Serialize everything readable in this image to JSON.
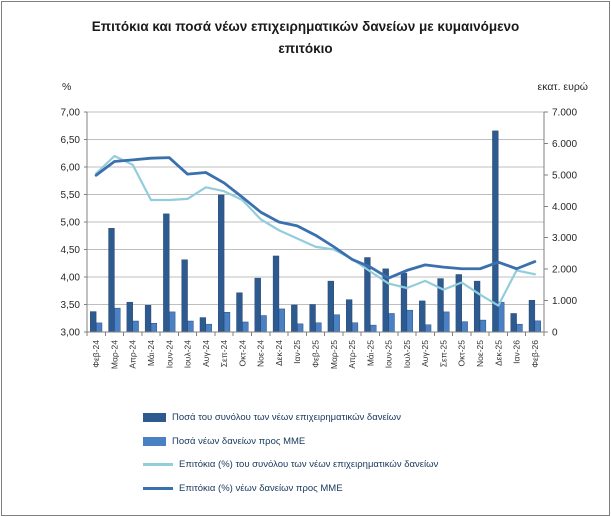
{
  "title": "Επιτόκια και ποσά νέων επιχειρηματικών δανείων με κυμαινόμενο επιτόκιο",
  "axes": {
    "left_unit": "%",
    "right_unit": "εκατ. ευρώ",
    "left_tick_labels": [
      "7,00",
      "6,50",
      "6,00",
      "5,50",
      "5,00",
      "4,50",
      "4,00",
      "3,50",
      "3,00"
    ],
    "right_tick_labels": [
      "7.000",
      "6.000",
      "5.000",
      "4.000",
      "3.000",
      "2.000",
      "1.000",
      "0"
    ]
  },
  "chart_data": {
    "type": "combo",
    "title": "Επιτόκια και ποσά νέων επιχειρηματικών δανείων με κυμαινόμενο επιτόκιο",
    "grid": true,
    "legend_position": "bottom",
    "categories": [
      "Φεβ-24",
      "Μαρ-24",
      "Απρ-24",
      "Μάι-24",
      "Ιουν-24",
      "Ιουλ-24",
      "Αυγ-24",
      "Σεπ-24",
      "Οκτ-24",
      "Νοε-24",
      "Δεκ-24",
      "Ιαν-25",
      "Φεβ-25",
      "Μαρ-25",
      "Απρ-25",
      "Μάι-25",
      "Ιουν-25",
      "Ιουλ-25",
      "Αυγ-25",
      "Σεπ-25",
      "Οκτ-25",
      "Νοε-25",
      "Δεκ-25",
      "Ιαν-26",
      "Φεβ-26"
    ],
    "left_axis": {
      "min": 3.0,
      "max": 7.0,
      "step": 0.5,
      "unit": "%"
    },
    "right_axis": {
      "min": 0,
      "max": 7000,
      "step": 1000,
      "unit": "εκατ. ευρώ"
    },
    "series": [
      {
        "name": "Ποσά του συνόλου των νέων επιχειρηματικών δανείων",
        "type": "bar",
        "axis": "right",
        "color": "#2E5B8F",
        "values": [
          650,
          3300,
          950,
          850,
          3760,
          2300,
          460,
          4360,
          1250,
          1715,
          2420,
          860,
          875,
          1620,
          1030,
          2370,
          2010,
          1875,
          990,
          1700,
          1830,
          1620,
          6400,
          590,
          1010
        ]
      },
      {
        "name": "Ποσά νέων δανείων προς ΜΜΕ",
        "type": "bar",
        "axis": "right",
        "color": "#4A80C4",
        "values": [
          290,
          760,
          350,
          280,
          640,
          350,
          250,
          630,
          320,
          525,
          735,
          260,
          295,
          550,
          295,
          220,
          590,
          695,
          230,
          640,
          330,
          380,
          950,
          250,
          355
        ]
      },
      {
        "name": "Επιτόκια (%) του συνόλου των νέων επιχειρηματικών δανείων",
        "type": "line",
        "axis": "left",
        "color": "#92CDDC",
        "values": [
          5.88,
          6.2,
          6.04,
          5.4,
          5.4,
          5.42,
          5.63,
          5.56,
          5.4,
          5.05,
          4.85,
          4.7,
          4.55,
          4.5,
          4.33,
          4.1,
          3.88,
          3.8,
          3.93,
          3.77,
          3.9,
          3.68,
          3.48,
          4.12,
          4.05
        ]
      },
      {
        "name": "Επιτόκια (%) νέων δανείων προς ΜΜΕ",
        "type": "line",
        "axis": "left",
        "color": "#3A70AD",
        "values": [
          5.85,
          6.1,
          6.13,
          6.16,
          6.17,
          5.87,
          5.9,
          5.71,
          5.45,
          5.18,
          5.0,
          4.93,
          4.76,
          4.55,
          4.32,
          4.18,
          3.98,
          4.12,
          4.22,
          4.18,
          4.15,
          4.15,
          4.27,
          4.15,
          4.28
        ]
      }
    ]
  }
}
